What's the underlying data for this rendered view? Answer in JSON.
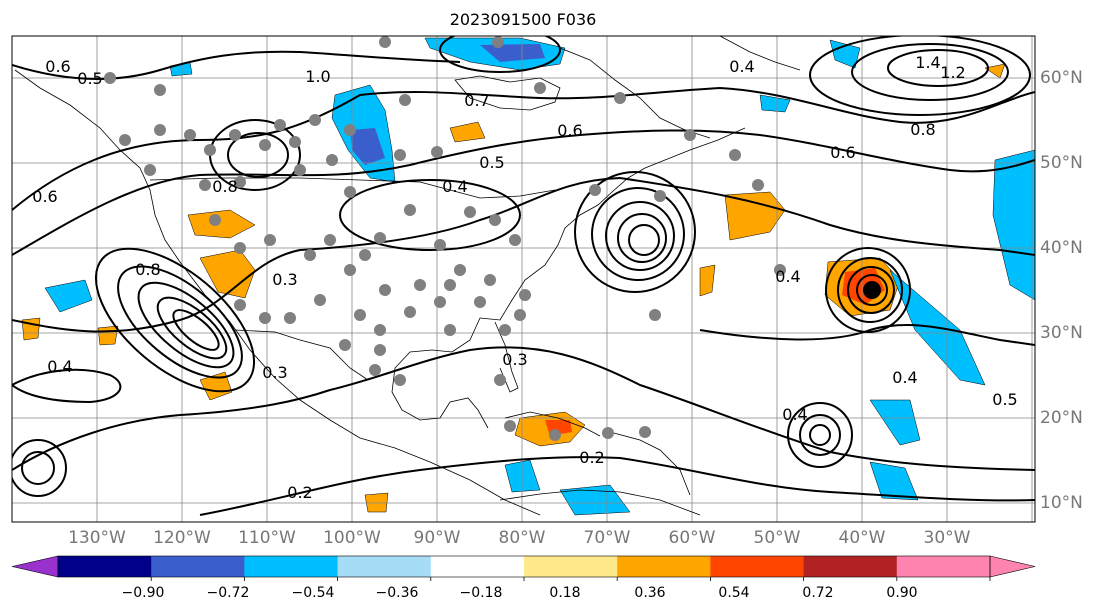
{
  "title": "2023091500 F036",
  "map": {
    "lon_labels": [
      "130°W",
      "120°W",
      "110°W",
      "100°W",
      "90°W",
      "80°W",
      "70°W",
      "60°W",
      "50°W",
      "40°W",
      "30°W"
    ],
    "lat_labels": [
      "60°N",
      "50°N",
      "40°N",
      "30°N",
      "20°N",
      "10°N"
    ],
    "contour_labels": [
      "0.6",
      "0.5",
      "0.7",
      "0.6",
      "0.5",
      "0.4",
      "0.6",
      "0.8",
      "1.2",
      "1.4",
      "0.6",
      "0.8",
      "0.4",
      "0.2",
      "0.2",
      "0.3",
      "0.4",
      "0.4",
      "0.5",
      "0.3",
      "1.0",
      "0.8",
      "0.4",
      "0.4",
      "0.3"
    ],
    "contour_color": "#000000",
    "station_marker_color": "#808080",
    "storm_marker_color": "#000000"
  },
  "colorbar": {
    "tick_labels": [
      "−0.90",
      "−0.72",
      "−0.54",
      "−0.36",
      "−0.18",
      "0.18",
      "0.36",
      "0.54",
      "0.72",
      "0.90"
    ],
    "colors": [
      "#9932cc",
      "#00008b",
      "#3a5fcd",
      "#00bfff",
      "#a7dcf7",
      "#ffffff",
      "#ffe98a",
      "#ffa500",
      "#ff4500",
      "#b22222",
      "#ff85b0",
      "#ff85b0"
    ],
    "extend": "both"
  }
}
